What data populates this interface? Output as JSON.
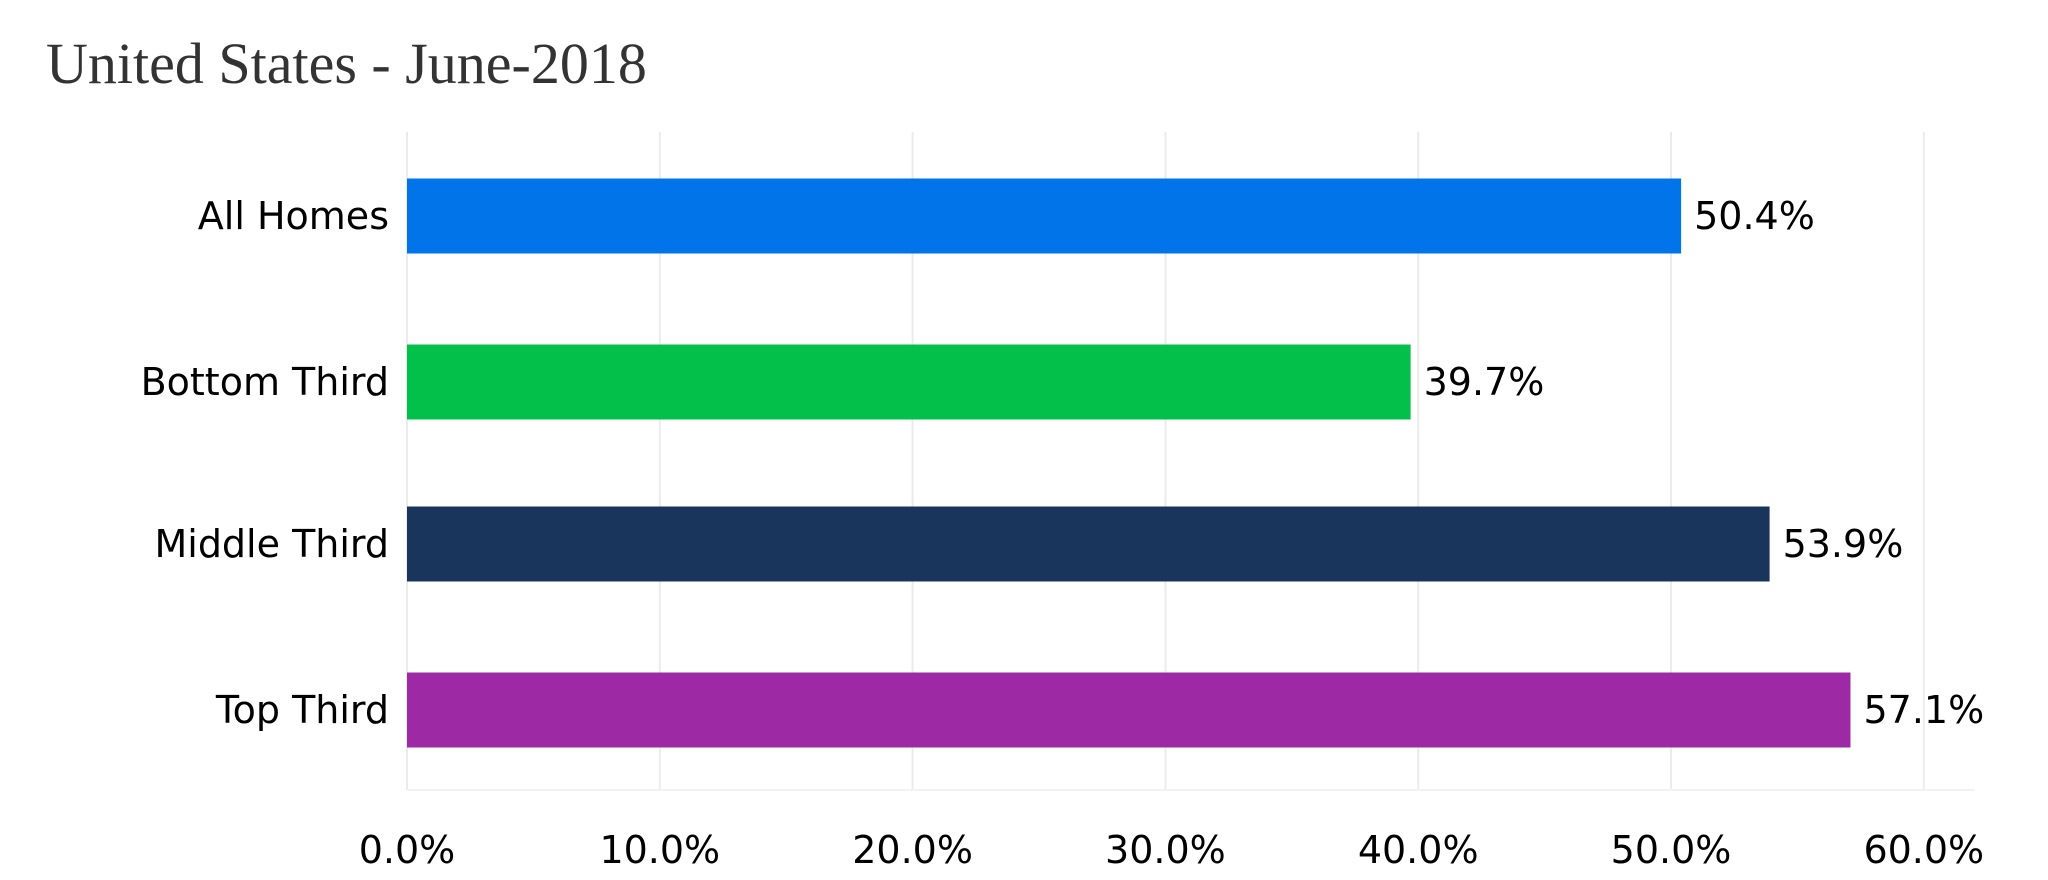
{
  "chart_data": {
    "type": "bar",
    "orientation": "horizontal",
    "title": "United States - June-2018",
    "xlabel": "",
    "ylabel": "",
    "categories": [
      "All Homes",
      "Bottom Third",
      "Middle Third",
      "Top Third"
    ],
    "values": [
      50.4,
      39.7,
      53.9,
      57.1
    ],
    "value_labels": [
      "50.4%",
      "39.7%",
      "53.9%",
      "57.1%"
    ],
    "colors": [
      "#0074e8",
      "#03c04a",
      "#1a355b",
      "#9d29a5"
    ],
    "xlim": [
      0,
      62
    ],
    "x_ticks": [
      0,
      10,
      20,
      30,
      40,
      50,
      60
    ],
    "x_tick_labels": [
      "0.0%",
      "10.0%",
      "20.0%",
      "30.0%",
      "40.0%",
      "50.0%",
      "60.0%"
    ],
    "grid": true,
    "legend": "none"
  }
}
